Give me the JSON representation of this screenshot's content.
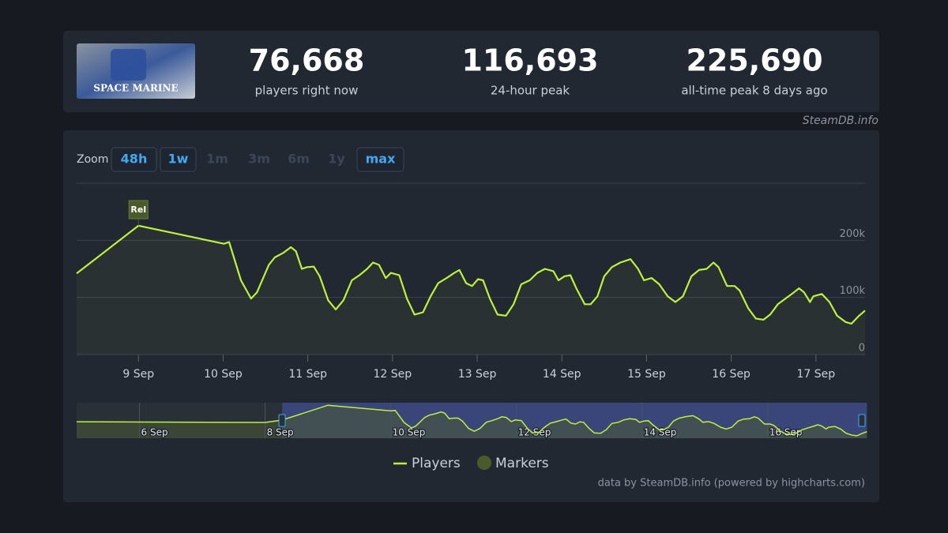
{
  "header": {
    "game_art_text": "SPACE MARINE",
    "stats": [
      {
        "value": "76,668",
        "label": "players right now"
      },
      {
        "value": "116,693",
        "label": "24-hour peak"
      },
      {
        "value": "225,690",
        "label": "all-time peak 8 days ago"
      }
    ]
  },
  "watermark": "SteamDB.info",
  "zoom": {
    "label": "Zoom",
    "options": [
      "48h",
      "1w",
      "1m",
      "3m",
      "6m",
      "1y",
      "max"
    ],
    "enabled": [
      true,
      true,
      false,
      false,
      false,
      false,
      true
    ]
  },
  "chart_data": {
    "type": "line",
    "xlim": [
      8.27,
      17.58
    ],
    "ylim": [
      0,
      300000
    ],
    "xticks": [
      {
        "value": 9,
        "label": "9 Sep"
      },
      {
        "value": 10,
        "label": "10 Sep"
      },
      {
        "value": 11,
        "label": "11 Sep"
      },
      {
        "value": 12,
        "label": "12 Sep"
      },
      {
        "value": 13,
        "label": "13 Sep"
      },
      {
        "value": 14,
        "label": "14 Sep"
      },
      {
        "value": 15,
        "label": "15 Sep"
      },
      {
        "value": 16,
        "label": "16 Sep"
      },
      {
        "value": 17,
        "label": "17 Sep"
      }
    ],
    "yticks": [
      0,
      {
        "value": 100000,
        "label": "100k"
      },
      {
        "value": 200000,
        "label": "200k"
      }
    ],
    "grid": true,
    "x": [
      8.27,
      9.0,
      10.01,
      10.07,
      10.21,
      10.33,
      10.4,
      10.54,
      10.61,
      10.71,
      10.8,
      10.86,
      10.93,
      10.99,
      11.07,
      11.14,
      11.24,
      11.33,
      11.42,
      11.52,
      11.61,
      11.7,
      11.77,
      11.84,
      11.92,
      11.98,
      12.08,
      12.17,
      12.26,
      12.36,
      12.45,
      12.54,
      12.64,
      12.73,
      12.79,
      12.87,
      12.94,
      13.01,
      13.07,
      13.15,
      13.24,
      13.34,
      13.43,
      13.52,
      13.62,
      13.71,
      13.8,
      13.9,
      13.96,
      14.03,
      14.1,
      14.17,
      14.27,
      14.34,
      14.42,
      14.5,
      14.59,
      14.69,
      14.81,
      14.9,
      14.97,
      15.06,
      15.15,
      15.25,
      15.34,
      15.43,
      15.53,
      15.62,
      15.71,
      15.79,
      15.85,
      15.95,
      16.04,
      16.1,
      16.2,
      16.29,
      16.38,
      16.46,
      16.55,
      16.65,
      16.74,
      16.8,
      16.86,
      16.93,
      16.97,
      17.07,
      17.16,
      17.25,
      17.35,
      17.42,
      17.51,
      17.58
    ],
    "series": [
      {
        "name": "Players",
        "color": "#bef03e",
        "values": [
          142000,
          225690,
          194000,
          197000,
          130000,
          98000,
          109000,
          157000,
          170000,
          178000,
          188000,
          181000,
          150000,
          153000,
          154000,
          137000,
          95000,
          79000,
          95000,
          130000,
          139000,
          150000,
          161000,
          157000,
          134000,
          143000,
          139000,
          98000,
          70000,
          74000,
          102000,
          125000,
          134000,
          143000,
          148000,
          125000,
          120000,
          132000,
          130000,
          98000,
          70000,
          68000,
          88000,
          123000,
          130000,
          143000,
          150000,
          146000,
          130000,
          137000,
          139000,
          116000,
          88000,
          88000,
          102000,
          137000,
          153000,
          161000,
          167000,
          150000,
          130000,
          134000,
          123000,
          102000,
          92000,
          102000,
          137000,
          148000,
          150000,
          161000,
          153000,
          120000,
          120000,
          112000,
          81000,
          63000,
          61000,
          70000,
          88000,
          99000,
          109000,
          116000,
          109000,
          92000,
          102000,
          106000,
          92000,
          68000,
          57000,
          54000,
          68000,
          77000
        ]
      }
    ],
    "markers": {
      "name": "Markers",
      "color": "#4b5a2b",
      "items": [
        {
          "x": 9,
          "label": "Rel"
        }
      ]
    },
    "navigator": {
      "xlim": [
        5.0,
        17.55
      ],
      "ylim": [
        40000,
        240000
      ],
      "xticks": [
        {
          "value": 6,
          "label": "6 Sep"
        },
        {
          "value": 8,
          "label": "8 Sep"
        },
        {
          "value": 10,
          "label": "10 Sep"
        },
        {
          "value": 12,
          "label": "12 Sep"
        },
        {
          "value": 14,
          "label": "14 Sep"
        },
        {
          "value": 16,
          "label": "16 Sep"
        }
      ],
      "x": [
        5.0,
        8.0
      ],
      "values": [
        133000,
        129000
      ]
    }
  },
  "credit": "data by SteamDB.info (powered by highcharts.com)"
}
